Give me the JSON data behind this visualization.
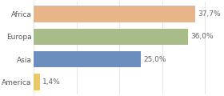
{
  "categories": [
    "America",
    "Asia",
    "Europa",
    "Africa"
  ],
  "values": [
    1.4,
    25.0,
    36.0,
    37.7
  ],
  "bar_colors": [
    "#e8c96a",
    "#6c8ebf",
    "#a8bc8a",
    "#e8b48a"
  ],
  "labels": [
    "1,4%",
    "25,0%",
    "36,0%",
    "37,7%"
  ],
  "xlim": [
    0,
    44
  ],
  "background_color": "#ffffff",
  "label_fontsize": 6.5,
  "tick_fontsize": 6.5,
  "bar_height": 0.72
}
